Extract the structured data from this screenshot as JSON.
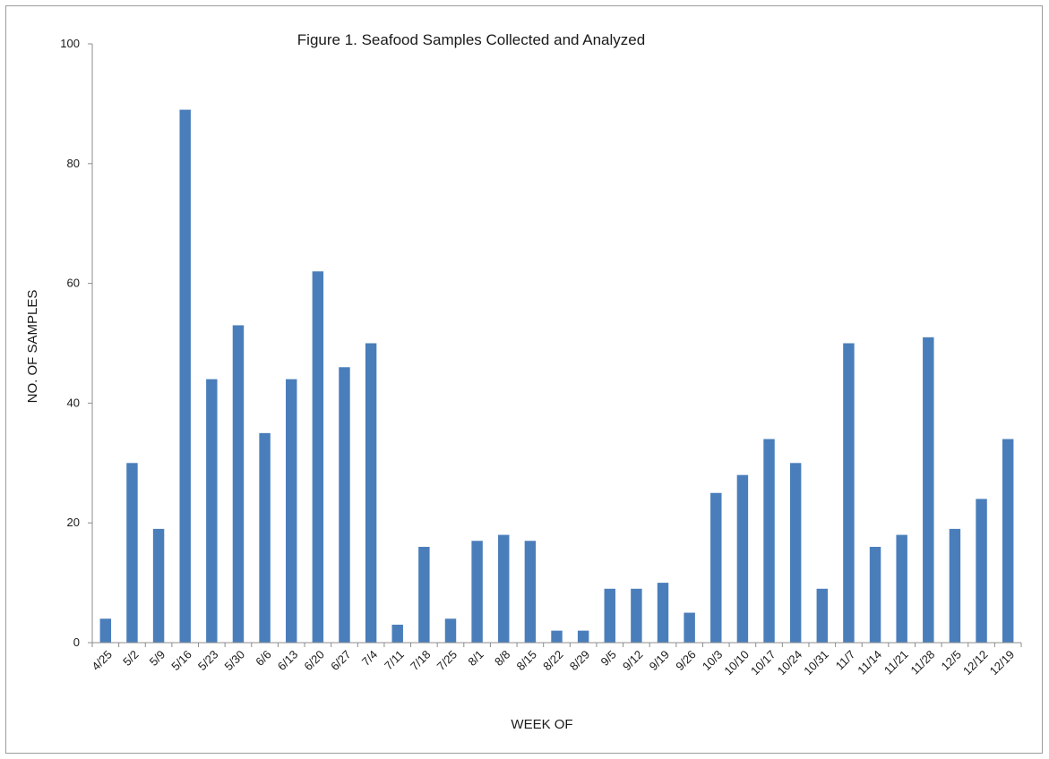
{
  "chart_data": {
    "type": "bar",
    "title": "Figure 1. Seafood Samples Collected and Analyzed",
    "xlabel": "WEEK OF",
    "ylabel": "NO. OF SAMPLES",
    "ylim": [
      0,
      100
    ],
    "yticks": [
      "0",
      "20",
      "40",
      "60",
      "80",
      "100"
    ],
    "grid": false,
    "legend": "none",
    "categories": [
      "4/25",
      "5/2",
      "5/9",
      "5/16",
      "5/23",
      "5/30",
      "6/6",
      "6/13",
      "6/20",
      "6/27",
      "7/4",
      "7/11",
      "7/18",
      "7/25",
      "8/1",
      "8/8",
      "8/15",
      "8/22",
      "8/29",
      "9/5",
      "9/12",
      "9/19",
      "9/26",
      "10/3",
      "10/10",
      "10/17",
      "10/24",
      "10/31",
      "11/7",
      "11/14",
      "11/21",
      "11/28",
      "12/5",
      "12/12",
      "12/19"
    ],
    "values": [
      4,
      30,
      19,
      89,
      44,
      53,
      35,
      44,
      62,
      46,
      50,
      3,
      16,
      4,
      17,
      18,
      17,
      2,
      2,
      9,
      9,
      10,
      5,
      25,
      28,
      34,
      30,
      9,
      50,
      16,
      18,
      51,
      19,
      24,
      34
    ],
    "bar_color": "#4a7ebb"
  }
}
